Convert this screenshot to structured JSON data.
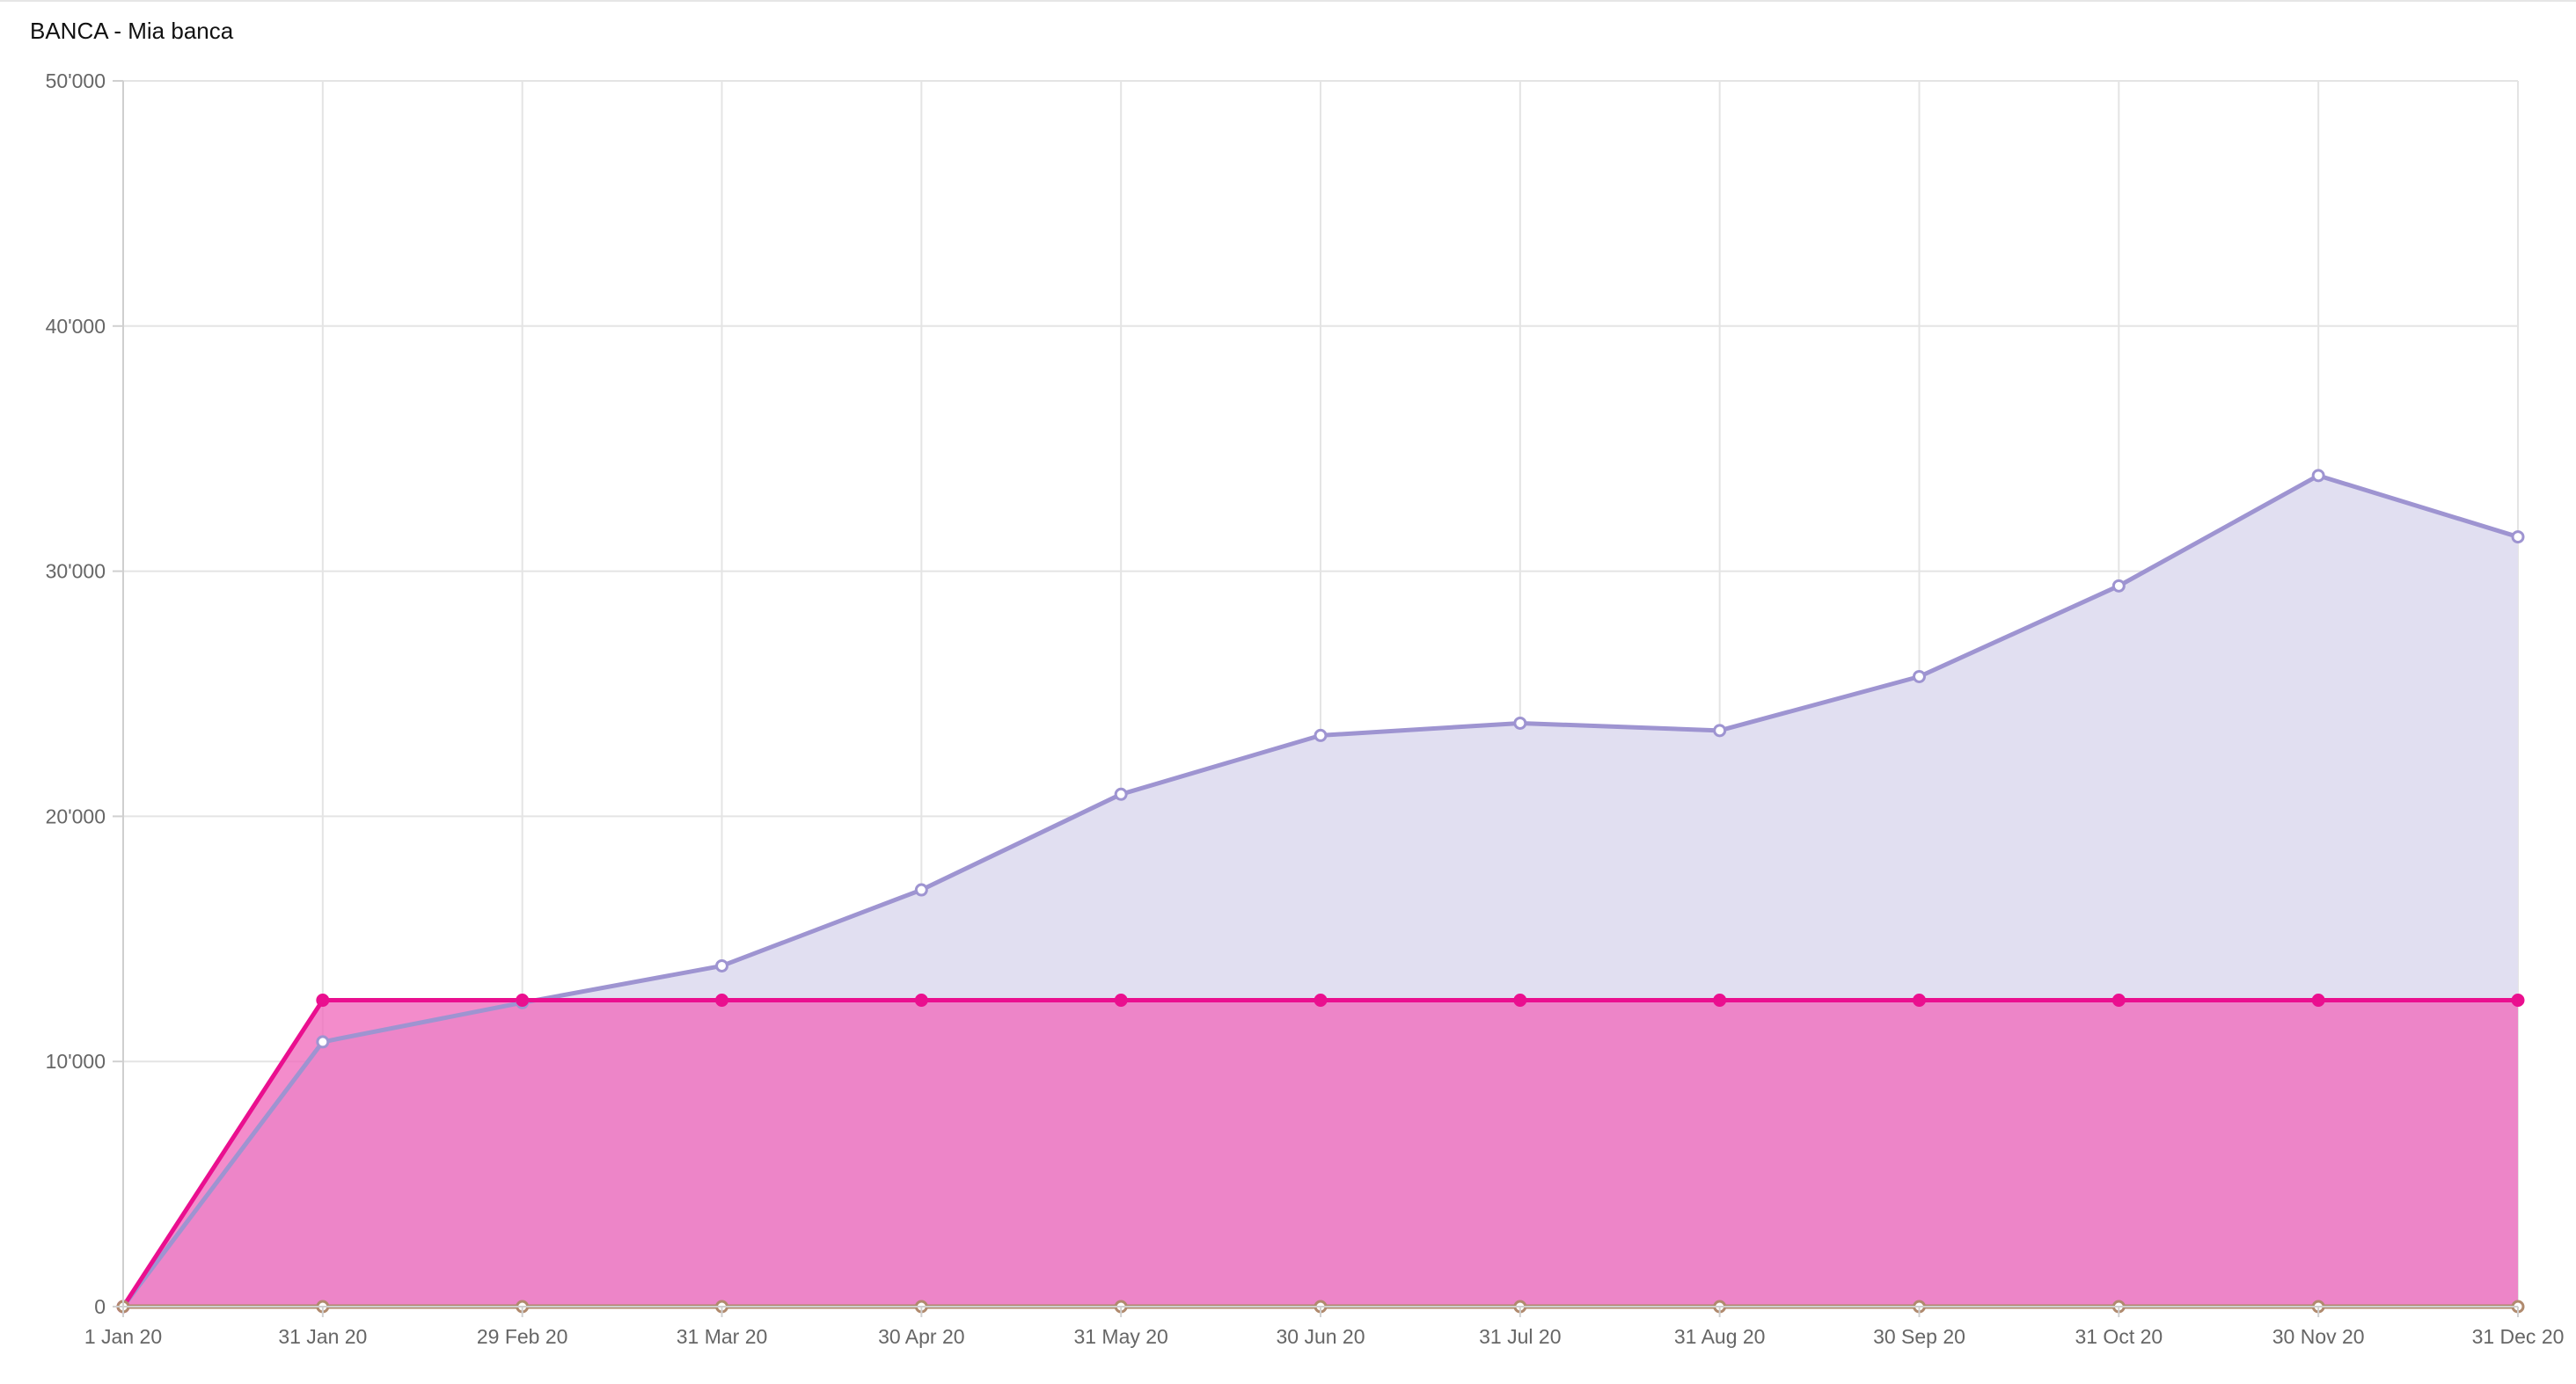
{
  "chart_data": {
    "type": "area",
    "title": "BANCA - Mia banca",
    "xlabel": "",
    "ylabel": "",
    "ylim": [
      0,
      50000
    ],
    "y_ticks": [
      {
        "value": 0,
        "label": "0"
      },
      {
        "value": 10000,
        "label": "10'000"
      },
      {
        "value": 20000,
        "label": "20'000"
      },
      {
        "value": 30000,
        "label": "30'000"
      },
      {
        "value": 40000,
        "label": "40'000"
      },
      {
        "value": 50000,
        "label": "50'000"
      }
    ],
    "categories": [
      "1 Jan 20",
      "31 Jan 20",
      "29 Feb 20",
      "31 Mar 20",
      "30 Apr 20",
      "31 May 20",
      "30 Jun 20",
      "31 Jul 20",
      "31 Aug 20",
      "30 Sep 20",
      "31 Oct 20",
      "30 Nov 20",
      "31 Dec 20"
    ],
    "grid": true,
    "series": [
      {
        "color": "#9e94d1",
        "fill": "#e1dff1",
        "values": [
          0,
          10800,
          12400,
          13900,
          17000,
          20900,
          23300,
          23800,
          23500,
          25700,
          29400,
          33900,
          31400
        ]
      },
      {
        "color": "#ea0f8f",
        "fill": "#f06cbd",
        "values": [
          0,
          12500,
          12500,
          12500,
          12500,
          12500,
          12500,
          12500,
          12500,
          12500,
          12500,
          12500,
          12500
        ]
      },
      {
        "color": "#b08a6e",
        "values": [
          0,
          0,
          0,
          0,
          0,
          0,
          0,
          0,
          0,
          0,
          0,
          0,
          0
        ]
      }
    ]
  }
}
